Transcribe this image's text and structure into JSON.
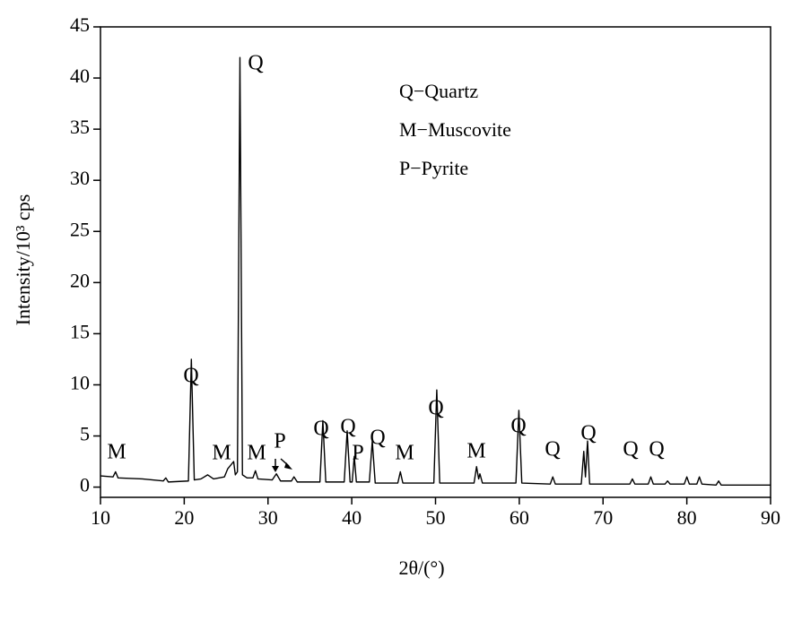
{
  "chart_data": {
    "type": "line",
    "x_label": "2θ/(°)",
    "y_label": "Intensity/10³ cps",
    "color": "#000000",
    "x": [
      10,
      11.5,
      11.8,
      12.1,
      15,
      17.5,
      17.8,
      18.1,
      20.5,
      20.85,
      21.2,
      22,
      22.8,
      23.5,
      24.8,
      25.2,
      25.9,
      26.1,
      26.35,
      26.65,
      26.95,
      27.5,
      28.2,
      28.5,
      28.8,
      30.5,
      31,
      31.5,
      32.8,
      33.1,
      33.5,
      36.2,
      36.55,
      36.9,
      39.1,
      39.45,
      39.8,
      40.05,
      40.3,
      40.55,
      42.1,
      42.45,
      42.8,
      45.5,
      45.8,
      46.1,
      49.8,
      50.15,
      50.5,
      54.6,
      54.9,
      55.15,
      55.3,
      55.6,
      59.6,
      59.95,
      60.3,
      63.7,
      64.0,
      64.3,
      67.4,
      67.7,
      67.9,
      68.15,
      68.4,
      73.2,
      73.5,
      73.8,
      75.4,
      75.7,
      76,
      77.4,
      77.7,
      78,
      79.7,
      80,
      80.3,
      81.2,
      81.5,
      81.8,
      83.5,
      83.8,
      84.1,
      90
    ],
    "values": [
      1.1,
      1.0,
      1.5,
      0.9,
      0.8,
      0.6,
      0.9,
      0.5,
      0.6,
      12.5,
      0.7,
      0.8,
      1.2,
      0.8,
      1.0,
      1.8,
      2.5,
      1.2,
      1.5,
      42,
      1.2,
      0.9,
      0.9,
      1.6,
      0.8,
      0.7,
      1.3,
      0.6,
      0.6,
      1.0,
      0.5,
      0.5,
      6.5,
      0.5,
      0.5,
      5.5,
      0.5,
      0.5,
      3.0,
      0.5,
      0.5,
      4.5,
      0.4,
      0.4,
      1.5,
      0.4,
      0.4,
      9.5,
      0.4,
      0.4,
      2.0,
      0.8,
      1.3,
      0.4,
      0.4,
      7.5,
      0.4,
      0.3,
      1.0,
      0.3,
      0.3,
      3.5,
      1.0,
      4.5,
      0.3,
      0.3,
      0.8,
      0.3,
      0.3,
      1.0,
      0.3,
      0.3,
      0.6,
      0.3,
      0.3,
      1.0,
      0.3,
      0.3,
      1.0,
      0.3,
      0.2,
      0.6,
      0.2,
      0.2
    ],
    "xlim": [
      10,
      90
    ],
    "xticks": [
      10,
      20,
      30,
      40,
      50,
      60,
      70,
      80,
      90
    ],
    "ylim": [
      -1,
      45
    ],
    "yticks": [
      0,
      5,
      10,
      15,
      20,
      25,
      30,
      35,
      40,
      45
    ],
    "annotations": [
      "M",
      "Q",
      "Q",
      "M",
      "M",
      "P",
      "Q",
      "Q",
      "P",
      "Q",
      "M",
      "Q",
      "M",
      "Q",
      "Q",
      "Q",
      "Q",
      "Q",
      "Q−Quartz",
      "M−Muscovite",
      "P−Pyrite"
    ]
  }
}
